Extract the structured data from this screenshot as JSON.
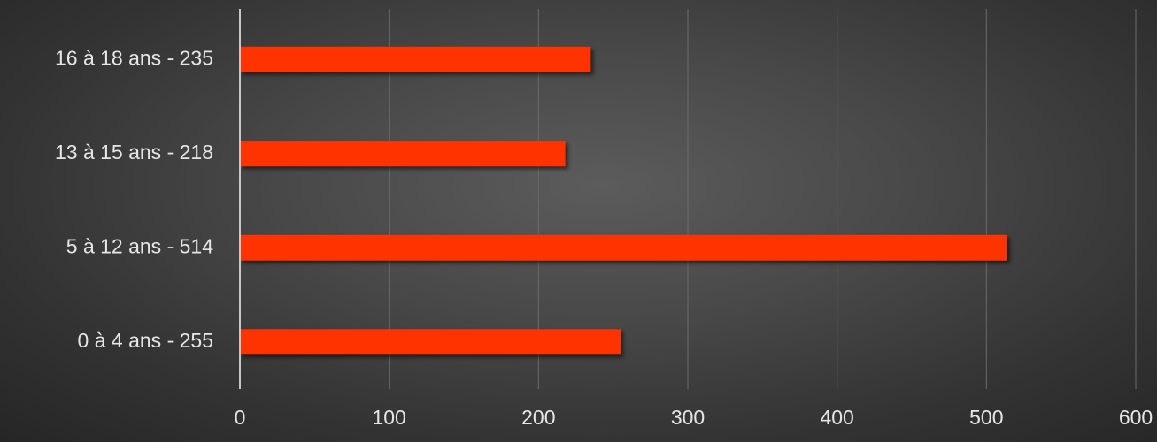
{
  "chart_data": {
    "type": "bar",
    "orientation": "horizontal",
    "categories": [
      "0 à 4 ans - 255",
      "5 à 12 ans - 514",
      "13 à 15 ans - 218",
      "16 à 18 ans - 235"
    ],
    "values": [
      255,
      514,
      218,
      235
    ],
    "title": "",
    "xlabel": "",
    "ylabel": "",
    "xlim": [
      0,
      600
    ],
    "xticks": [
      0,
      100,
      200,
      300,
      400,
      500,
      600
    ],
    "grid": "vertical",
    "legend": "none",
    "colors": {
      "bar": "#ff3300",
      "background": "#444444",
      "text": "#e6e6e6",
      "grid": "#6a6a6a",
      "axis": "#c8c8c8"
    }
  }
}
